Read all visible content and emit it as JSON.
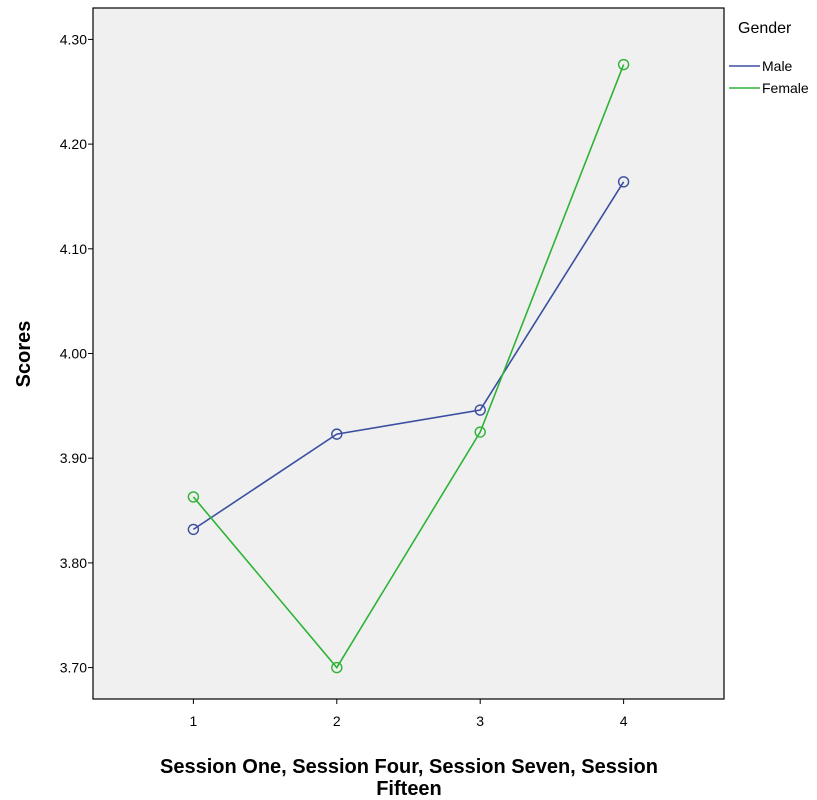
{
  "chart_data": {
    "type": "line",
    "title": "",
    "xlabel": "Session One, Session Four, Session Seven, Session Fifteen",
    "ylabel": "Scores",
    "categories": [
      "1",
      "2",
      "3",
      "4"
    ],
    "x": [
      1,
      2,
      3,
      4
    ],
    "xlim": [
      0.3,
      4.7
    ],
    "ylim": [
      3.67,
      4.33
    ],
    "yticks": [
      3.7,
      3.8,
      3.9,
      4.0,
      4.1,
      4.2,
      4.3
    ],
    "ytick_labels": [
      "3.70",
      "3.80",
      "3.90",
      "4.00",
      "4.10",
      "4.20",
      "4.30"
    ],
    "grid": false,
    "legend_position": "right",
    "legend_title": "Gender",
    "markers": "open circles",
    "series": [
      {
        "name": "Male",
        "color": "#3b4ea0",
        "values": [
          3.832,
          3.923,
          3.946,
          4.164
        ]
      },
      {
        "name": "Female",
        "color": "#2db335",
        "values": [
          3.863,
          3.7,
          3.925,
          4.276
        ]
      }
    ],
    "plot_background": "#f0f0f0"
  }
}
